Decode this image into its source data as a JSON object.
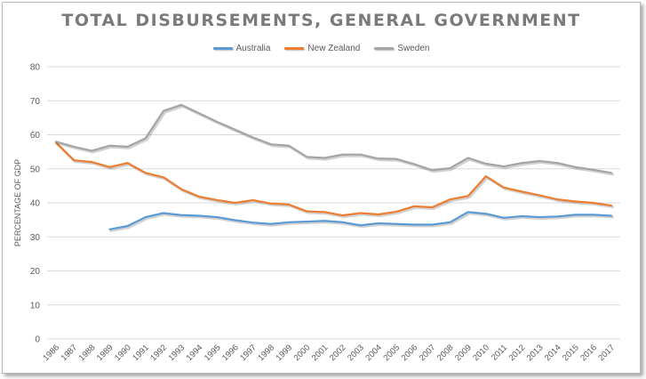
{
  "chart_data": {
    "type": "line",
    "title": "TOTAL DISBURSEMENTS, GENERAL GOVERNMENT",
    "xlabel": "",
    "ylabel": "PERCENTAGE OF GDP",
    "ylim": [
      0,
      80
    ],
    "yticks": [
      0,
      10,
      20,
      30,
      40,
      50,
      60,
      70,
      80
    ],
    "grid": true,
    "legend": "top-center",
    "categories": [
      "1986",
      "1987",
      "1988",
      "1989",
      "1990",
      "1991",
      "1992",
      "1993",
      "1994",
      "1995",
      "1996",
      "1997",
      "1998",
      "1999",
      "2000",
      "2001",
      "2002",
      "2003",
      "2004",
      "2005",
      "2006",
      "2007",
      "2008",
      "2009",
      "2010",
      "2011",
      "2012",
      "2013",
      "2014",
      "2015",
      "2016",
      "2017"
    ],
    "series": [
      {
        "name": "Australia",
        "color": "#5b9bd5",
        "values": [
          null,
          null,
          null,
          32.2,
          33.2,
          35.8,
          37.0,
          36.4,
          36.2,
          35.8,
          34.9,
          34.2,
          33.8,
          34.3,
          34.5,
          34.7,
          34.3,
          33.4,
          34.0,
          33.8,
          33.6,
          33.6,
          34.3,
          37.3,
          36.8,
          35.6,
          36.1,
          35.8,
          36.0,
          36.5,
          36.5,
          36.2
        ]
      },
      {
        "name": "New Zealand",
        "color": "#ed7d31",
        "values": [
          57.7,
          52.5,
          52.0,
          50.5,
          51.7,
          48.8,
          47.5,
          44.0,
          41.8,
          40.8,
          40.0,
          40.8,
          39.8,
          39.5,
          37.5,
          37.3,
          36.3,
          37.0,
          36.6,
          37.4,
          39.0,
          38.7,
          41.0,
          42.0,
          47.8,
          44.5,
          43.3,
          42.2,
          41.0,
          40.4,
          40.0,
          39.2
        ]
      },
      {
        "name": "Sweden",
        "color": "#a5a5a5",
        "values": [
          58.0,
          56.5,
          55.3,
          56.8,
          56.5,
          59.0,
          67.0,
          68.8,
          66.3,
          63.8,
          61.5,
          59.2,
          57.2,
          56.8,
          53.5,
          53.2,
          54.2,
          54.2,
          53.0,
          52.9,
          51.4,
          49.6,
          50.2,
          53.2,
          51.5,
          50.7,
          51.7,
          52.3,
          51.7,
          50.5,
          49.7,
          48.8
        ]
      }
    ]
  }
}
